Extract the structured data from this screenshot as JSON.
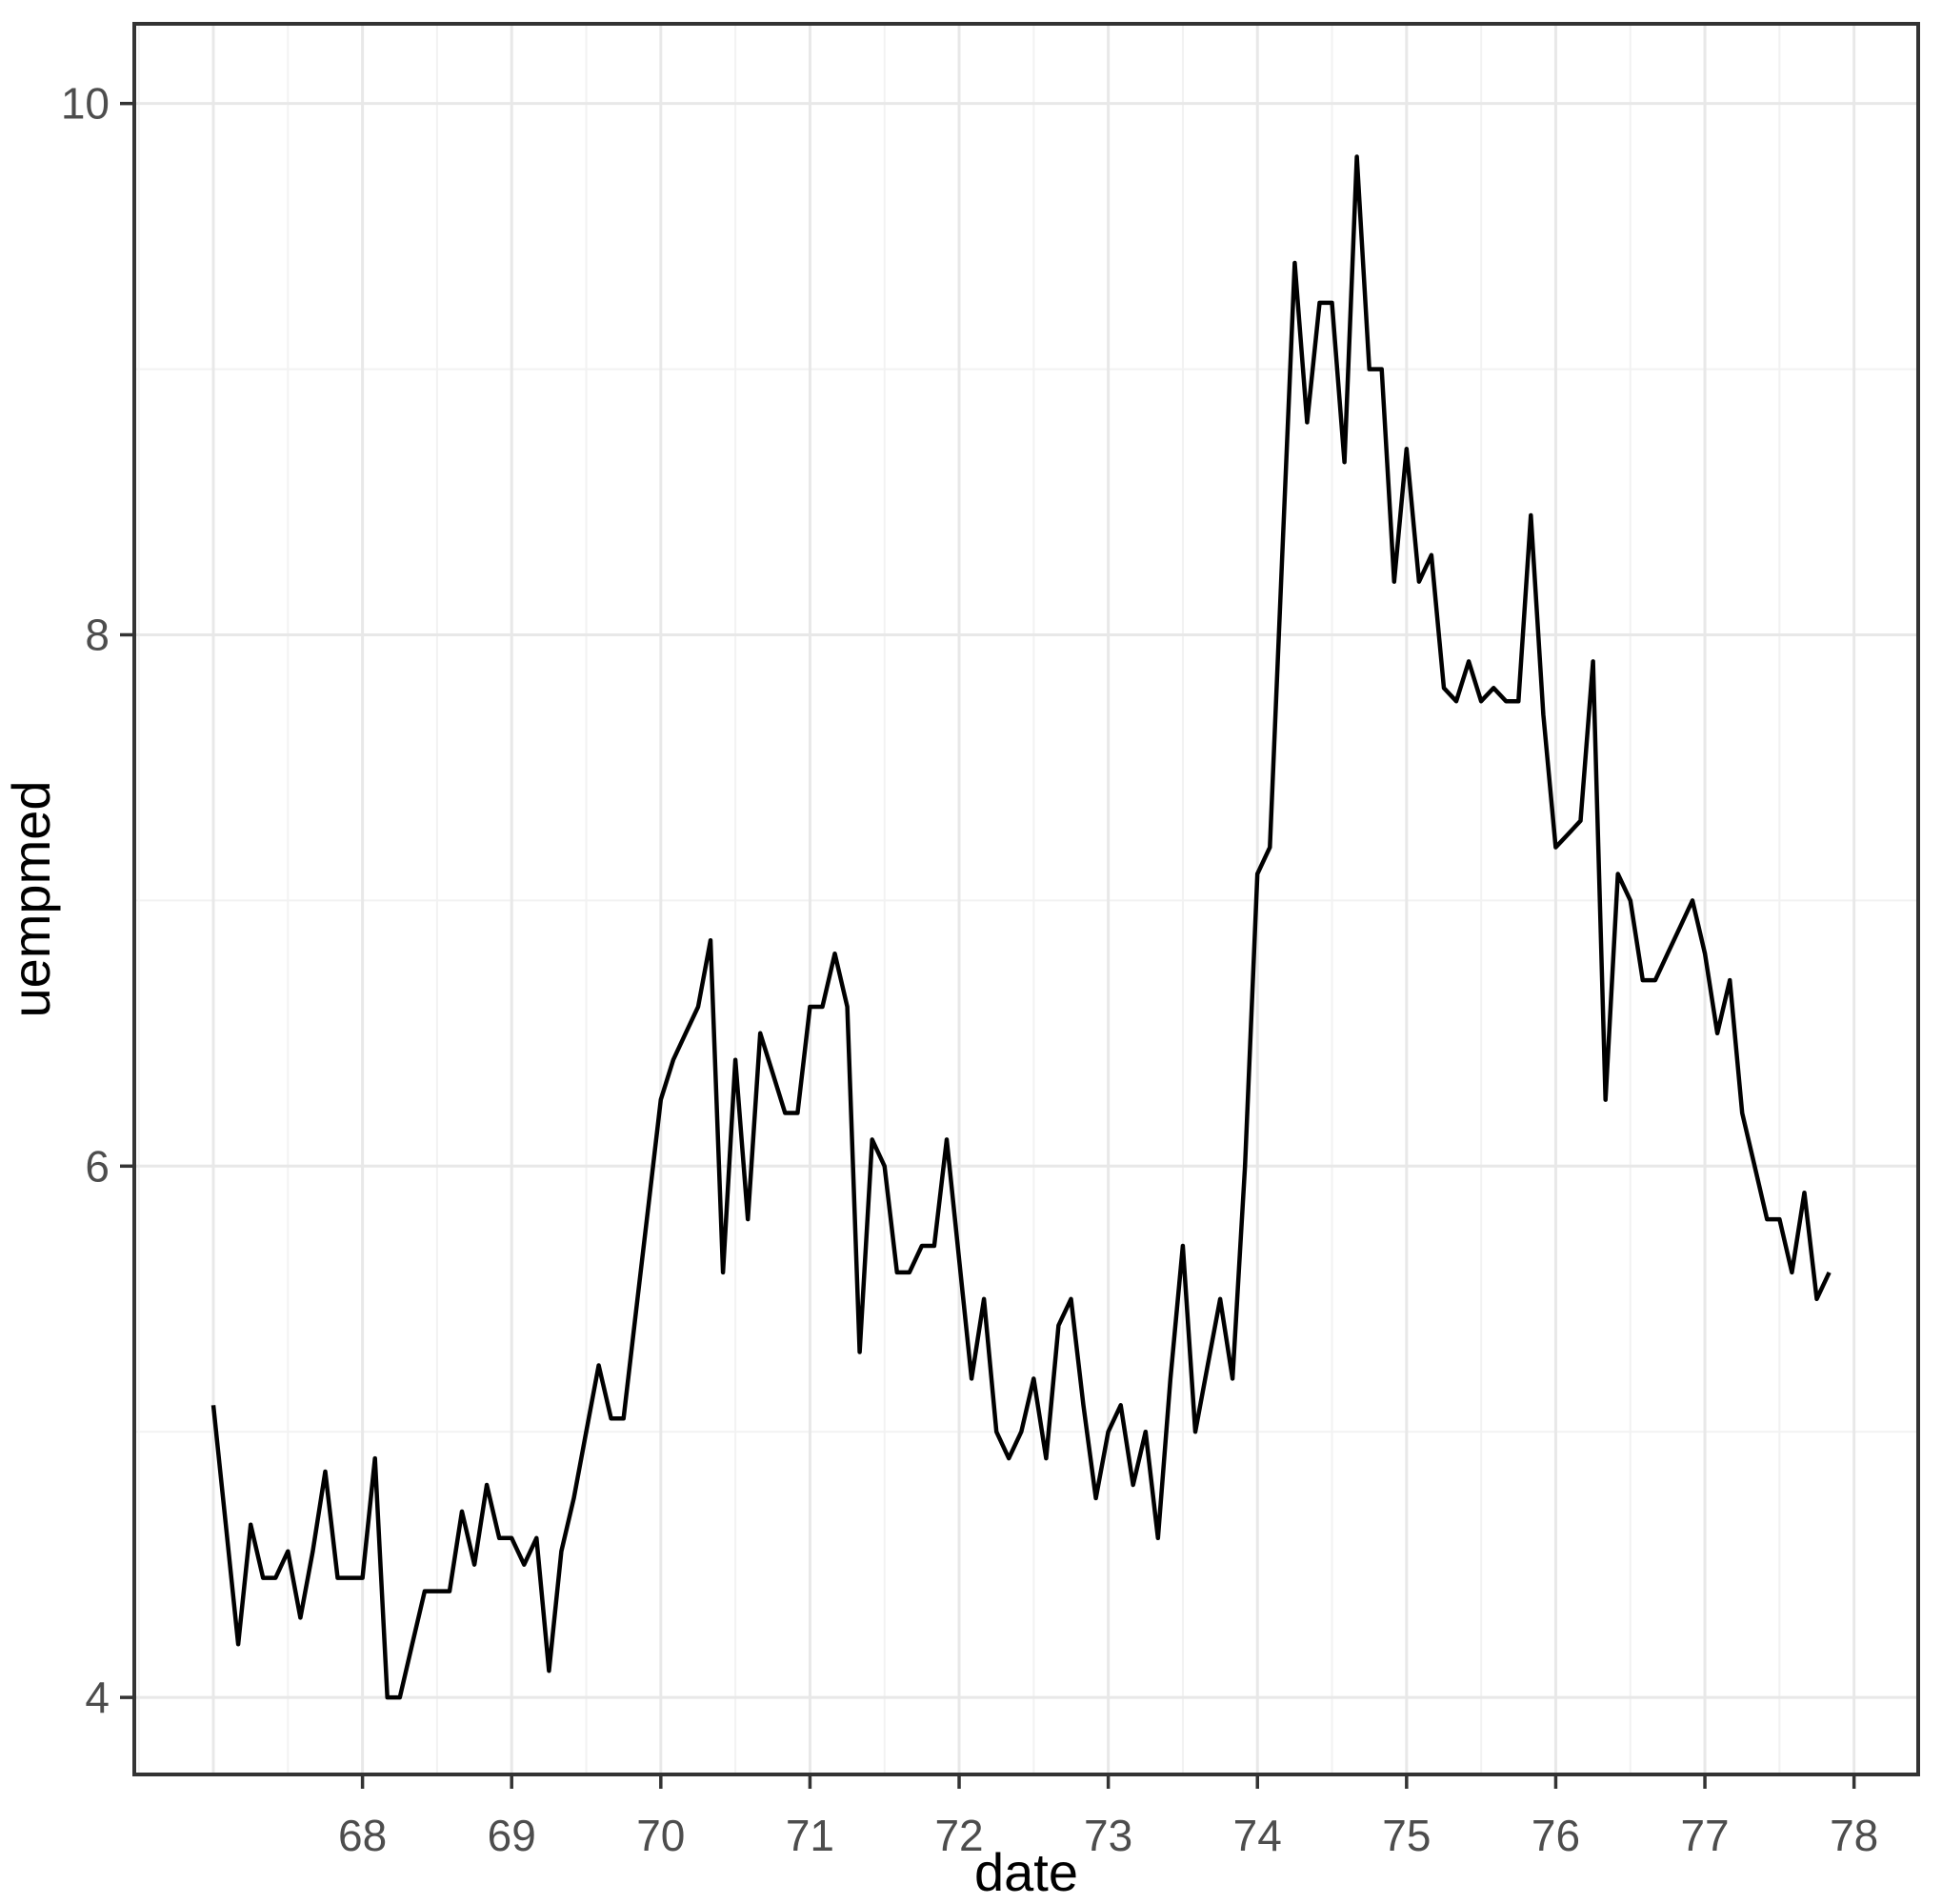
{
  "chart_data": {
    "type": "line",
    "title": "",
    "xlabel": "date",
    "ylabel": "uempmed",
    "series_name": "uempmed",
    "frequency": "monthly",
    "start": "1967-01",
    "x_start_decimal_year": 67.0,
    "values": [
      5.1,
      4.65,
      4.2,
      4.65,
      4.45,
      4.45,
      4.55,
      4.3,
      4.55,
      4.85,
      4.45,
      4.45,
      4.45,
      4.9,
      4.0,
      4.0,
      4.2,
      4.4,
      4.4,
      4.4,
      4.7,
      4.5,
      4.8,
      4.6,
      4.6,
      4.5,
      4.6,
      4.1,
      4.55,
      4.75,
      5.0,
      5.25,
      5.05,
      5.05,
      5.45,
      5.85,
      6.25,
      6.4,
      6.5,
      6.6,
      6.85,
      5.6,
      6.4,
      5.8,
      6.5,
      6.35,
      6.2,
      6.2,
      6.6,
      6.6,
      6.8,
      6.6,
      5.3,
      6.1,
      6.0,
      5.6,
      5.6,
      5.7,
      5.7,
      6.1,
      5.65,
      5.2,
      5.5,
      5.0,
      4.9,
      5.0,
      5.2,
      4.9,
      5.4,
      5.5,
      5.1,
      4.75,
      5.0,
      5.1,
      4.8,
      5.0,
      4.6,
      5.2,
      5.7,
      5.0,
      5.25,
      5.5,
      5.2,
      6.0,
      7.1,
      7.2,
      8.3,
      9.4,
      8.8,
      9.25,
      9.25,
      8.65,
      9.8,
      9.0,
      9.0,
      8.2,
      8.7,
      8.2,
      8.3,
      7.8,
      7.75,
      7.9,
      7.75,
      7.8,
      7.75,
      7.75,
      8.45,
      7.7,
      7.2,
      7.25,
      7.3,
      7.9,
      6.25,
      7.1,
      7.0,
      6.7,
      6.7,
      6.8,
      6.9,
      7.0,
      6.8,
      6.5,
      6.7,
      6.2,
      6.0,
      5.8,
      5.8,
      5.6,
      5.9,
      5.5,
      5.6
    ],
    "x_domain": [
      66.47,
      78.43
    ],
    "y_domain": [
      3.71,
      10.3
    ],
    "x_ticks_labeled": [
      68,
      69,
      70,
      71,
      72,
      73,
      74,
      75,
      76,
      77,
      78
    ],
    "x_tick_labels": [
      "68",
      "69",
      "70",
      "71",
      "72",
      "73",
      "74",
      "75",
      "76",
      "77",
      "78"
    ],
    "x_gridlines_major": [
      67,
      68,
      69,
      70,
      71,
      72,
      73,
      74,
      75,
      76,
      77,
      78
    ],
    "x_gridlines_minor": [
      66.5,
      67.5,
      68.5,
      69.5,
      70.5,
      71.5,
      72.5,
      73.5,
      74.5,
      75.5,
      76.5,
      77.5
    ],
    "y_ticks_labeled": [
      4,
      6,
      8,
      10
    ],
    "y_tick_labels": [
      "4",
      "6",
      "8",
      "10"
    ],
    "y_gridlines_minor": [
      5,
      7,
      9
    ],
    "grid": "on",
    "legend": "none",
    "colors": {
      "line": "#000000",
      "grid_major": "#e8e8e8",
      "grid_minor": "#f2f2f2",
      "panel_border": "#333333",
      "tick_mark": "#333333",
      "tick_label": "#4d4d4d",
      "axis_title": "#000000",
      "background": "#ffffff"
    }
  }
}
